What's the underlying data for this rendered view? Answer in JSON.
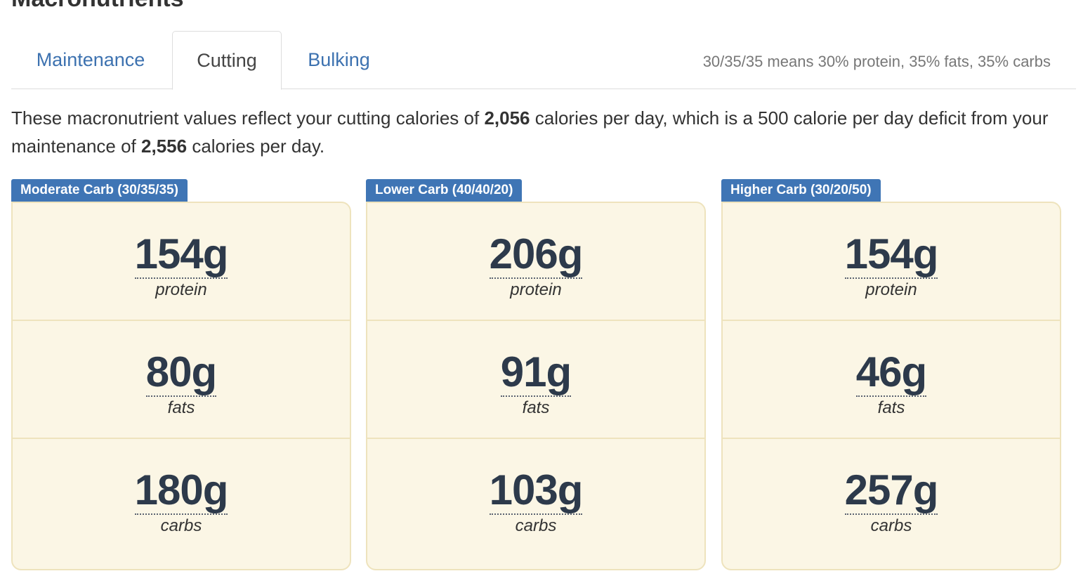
{
  "section": {
    "title": "Macronutrients"
  },
  "tabs": [
    {
      "label": "Maintenance",
      "active": false
    },
    {
      "label": "Cutting",
      "active": true
    },
    {
      "label": "Bulking",
      "active": false
    }
  ],
  "tabs_note": "30/35/35 means 30% protein, 35% fats, 35% carbs",
  "description": {
    "part1": "These macronutrient values reflect your cutting calories of ",
    "cutting_calories": "2,056",
    "part2": " calories per day, which is a 500 calorie per day deficit from your maintenance of ",
    "maintenance_calories": "2,556",
    "part3": " calories per day."
  },
  "plans": [
    {
      "label": "Moderate Carb (30/35/35)",
      "macros": [
        {
          "amount": "154g",
          "name": "protein"
        },
        {
          "amount": "80g",
          "name": "fats"
        },
        {
          "amount": "180g",
          "name": "carbs"
        }
      ]
    },
    {
      "label": "Lower Carb (40/40/20)",
      "macros": [
        {
          "amount": "206g",
          "name": "protein"
        },
        {
          "amount": "91g",
          "name": "fats"
        },
        {
          "amount": "103g",
          "name": "carbs"
        }
      ]
    },
    {
      "label": "Higher Carb (30/20/50)",
      "macros": [
        {
          "amount": "154g",
          "name": "protein"
        },
        {
          "amount": "46g",
          "name": "fats"
        },
        {
          "amount": "257g",
          "name": "carbs"
        }
      ]
    }
  ],
  "colors": {
    "link": "#3d72b0",
    "label_bg": "#3f75b5",
    "card_bg": "#fbf6e5",
    "card_border": "#eee3bd",
    "amount_text": "#2d3a4b"
  }
}
